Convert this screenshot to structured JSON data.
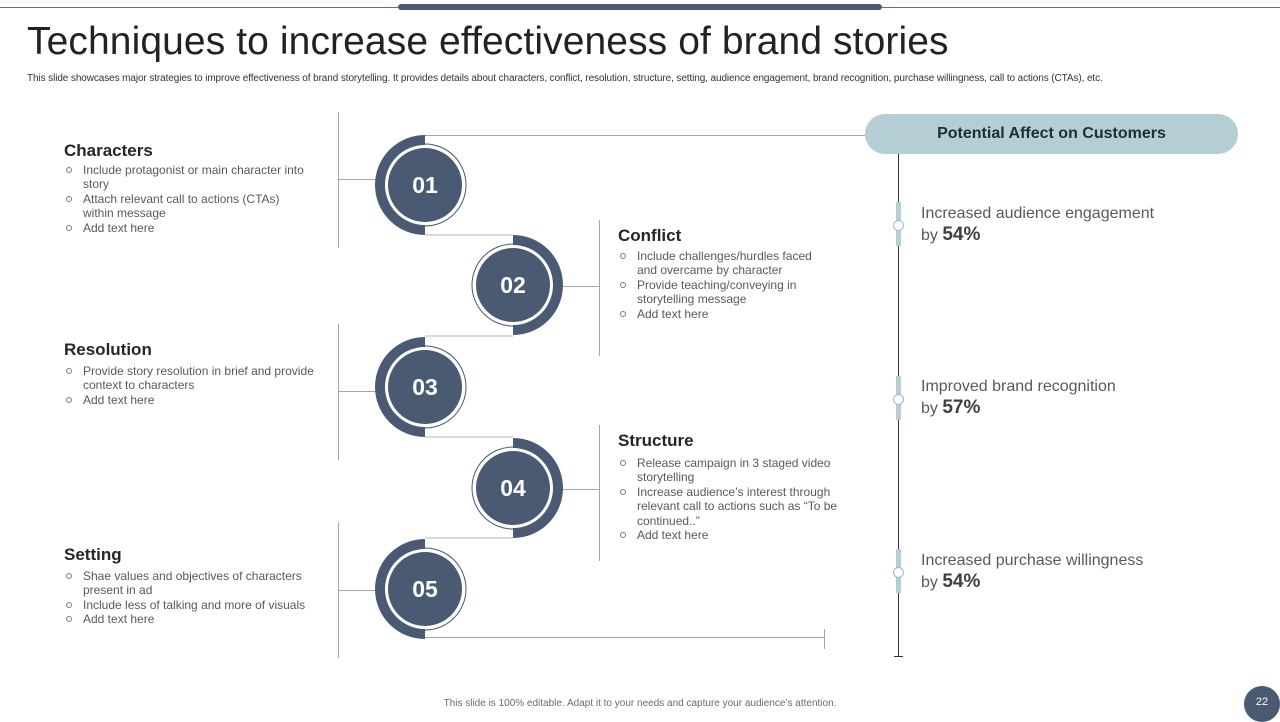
{
  "title": "Techniques to increase effectiveness of brand stories",
  "subtitle": "This slide showcases major strategies to improve effectiveness of brand storytelling. It provides details about characters, conflict, resolution, structure, setting, audience engagement, brand recognition, purchase willingness, call to actions (CTAs), etc.",
  "sections": [
    {
      "num": "01",
      "title": "Characters",
      "bullets": [
        "Include protagonist or main character into story",
        "Attach relevant call to actions (CTAs) within message",
        "Add text here"
      ]
    },
    {
      "num": "02",
      "title": "Conflict",
      "bullets": [
        "Include challenges/hurdles faced and overcame by character",
        "Provide teaching/conveying in storytelling message",
        "Add text here"
      ]
    },
    {
      "num": "03",
      "title": "Resolution",
      "bullets": [
        "Provide story resolution in brief and provide context to characters",
        "Add text here"
      ]
    },
    {
      "num": "04",
      "title": "Structure",
      "bullets": [
        "Release campaign in 3 staged video storytelling",
        "Increase audience’s interest through relevant call to actions such as “To be continued..”",
        "Add text here"
      ]
    },
    {
      "num": "05",
      "title": "Setting",
      "bullets": [
        "Shae values and objectives of characters present in ad",
        "Include less of talking and more of visuals",
        "Add text here"
      ]
    }
  ],
  "customers": {
    "header": "Potential Affect on Customers",
    "items": [
      {
        "label": "Increased audience engagement",
        "by": "by",
        "value": "54%"
      },
      {
        "label": "Improved brand recognition",
        "by": "by",
        "value": "57%"
      },
      {
        "label": "Increased purchase willingness",
        "by": "by",
        "value": "54%"
      }
    ]
  },
  "footer": "This slide is 100% editable.  Adapt it to your needs and capture your audience’s attention.",
  "page_number": "22",
  "colors": {
    "navy": "#4a5a72",
    "light_blue": "#b5cdd4",
    "line_gray": "#a6a6a6"
  }
}
